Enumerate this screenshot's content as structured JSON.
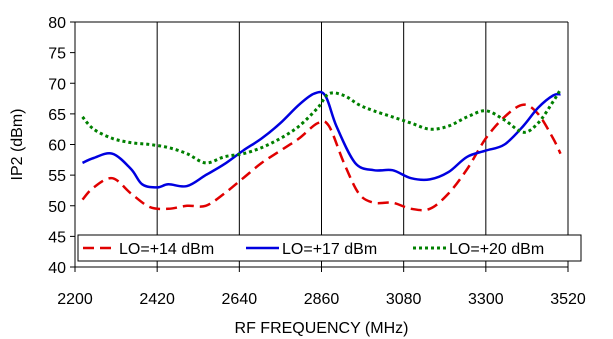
{
  "chart_data": {
    "type": "line",
    "title": "",
    "xlabel": "RF FREQUENCY (MHz)",
    "ylabel": "IP2 (dBm)",
    "xlim": [
      2200,
      3520
    ],
    "ylim": [
      40,
      80
    ],
    "xticks": [
      2200,
      2420,
      2640,
      2860,
      3080,
      3300,
      3520
    ],
    "yticks": [
      40,
      45,
      50,
      55,
      60,
      65,
      70,
      75,
      80
    ],
    "grid": "vertical",
    "legend_position": "bottom",
    "series": [
      {
        "name": "LO=+14 dBm",
        "color": "#e00000",
        "style": "dashed",
        "x": [
          2220,
          2250,
          2300,
          2350,
          2400,
          2450,
          2500,
          2550,
          2600,
          2650,
          2700,
          2750,
          2800,
          2850,
          2880,
          2920,
          2960,
          3000,
          3050,
          3100,
          3150,
          3200,
          3250,
          3300,
          3350,
          3400,
          3440,
          3480,
          3500
        ],
        "y": [
          51,
          53,
          54.5,
          52,
          49.8,
          49.5,
          50,
          50,
          52,
          54.5,
          57,
          59,
          61,
          63.5,
          63,
          57,
          52,
          50.5,
          50.5,
          49.5,
          49.5,
          52,
          56,
          61,
          64.5,
          66.5,
          65,
          61,
          58.5
        ]
      },
      {
        "name": "LO=+17 dBm",
        "color": "#0000e0",
        "style": "solid",
        "x": [
          2220,
          2250,
          2300,
          2350,
          2380,
          2420,
          2450,
          2500,
          2550,
          2600,
          2650,
          2700,
          2750,
          2800,
          2840,
          2870,
          2900,
          2950,
          3000,
          3050,
          3100,
          3150,
          3200,
          3250,
          3300,
          3350,
          3400,
          3440,
          3480,
          3500
        ],
        "y": [
          57,
          57.8,
          58.5,
          56,
          53.5,
          53,
          53.5,
          53.2,
          55,
          56.8,
          59,
          61,
          63.5,
          66.5,
          68.3,
          68,
          63,
          57,
          55.8,
          55.8,
          54.5,
          54.3,
          55.5,
          58,
          59,
          60,
          63,
          66,
          68,
          68.2
        ]
      },
      {
        "name": "LO=+20 dBm",
        "color": "#008000",
        "style": "dotted",
        "x": [
          2220,
          2250,
          2300,
          2350,
          2400,
          2450,
          2500,
          2550,
          2600,
          2650,
          2700,
          2750,
          2800,
          2850,
          2880,
          2920,
          2960,
          3000,
          3050,
          3100,
          3150,
          3200,
          3250,
          3300,
          3350,
          3400,
          3440,
          3480,
          3500
        ],
        "y": [
          64.5,
          62.5,
          61,
          60.3,
          60,
          59.5,
          58.5,
          57,
          58,
          58.5,
          59.5,
          61,
          63,
          66,
          68.3,
          68,
          66.5,
          65.5,
          64.5,
          63.5,
          62.5,
          63,
          64.5,
          65.5,
          64,
          62,
          63.5,
          67,
          69
        ]
      }
    ]
  }
}
